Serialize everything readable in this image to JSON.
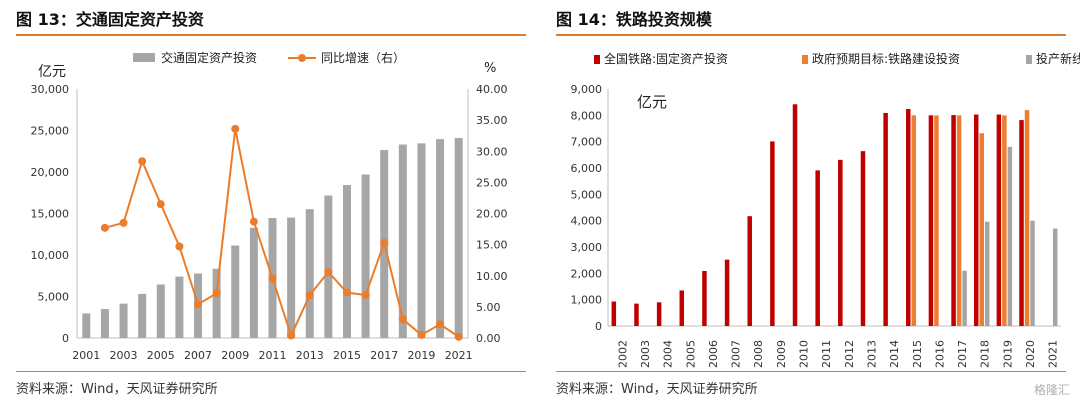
{
  "chart_data": [
    {
      "type": "bar",
      "title": "图 13：交通固定资产投资",
      "source": "资料来源：Wind，天风证券研究所",
      "y_unit_left": "亿元",
      "y_unit_right": "%",
      "ylim_left": [
        0,
        30000
      ],
      "ylim_right": [
        0,
        40
      ],
      "yticks_left": [
        "0",
        "5,000",
        "10,000",
        "15,000",
        "20,000",
        "25,000",
        "30,000"
      ],
      "yticks_right": [
        "0.00",
        "5.00",
        "10.00",
        "15.00",
        "20.00",
        "25.00",
        "30.00",
        "35.00",
        "40.00"
      ],
      "categories": [
        "2001",
        "2002",
        "2003",
        "2004",
        "2005",
        "2006",
        "2007",
        "2008",
        "2009",
        "2010",
        "2011",
        "2012",
        "2013",
        "2014",
        "2015",
        "2016",
        "2017",
        "2018",
        "2019",
        "2020",
        "2021"
      ],
      "xtick_labels": [
        "2001",
        "2003",
        "2005",
        "2007",
        "2009",
        "2011",
        "2013",
        "2015",
        "2017",
        "2019",
        "2021"
      ],
      "legend": {
        "placement": "top",
        "items": [
          "交通固定资产投资",
          "同比增速（右）"
        ]
      },
      "series": [
        {
          "name": "交通固定资产投资",
          "kind": "bar",
          "axis": "left",
          "color": "#a6a6a6",
          "values": [
            2960,
            3490,
            4140,
            5310,
            6450,
            7400,
            7770,
            8340,
            11140,
            13280,
            14460,
            14510,
            15520,
            17170,
            18430,
            19700,
            22640,
            23310,
            23450,
            23960,
            24090
          ]
        },
        {
          "name": "同比增速（右）",
          "kind": "line",
          "axis": "right",
          "color": "#ea7d2c",
          "values": [
            null,
            17.7,
            18.5,
            28.4,
            21.5,
            14.7,
            5.4,
            7.2,
            33.6,
            18.7,
            9.6,
            0.4,
            6.9,
            10.6,
            7.3,
            6.9,
            15.3,
            3.0,
            0.5,
            2.2,
            0.2
          ]
        }
      ],
      "colors": {
        "accent": "#e07b2b",
        "bar": "#a6a6a6",
        "line": "#ea7d2c"
      }
    },
    {
      "type": "bar",
      "title": "图 14：铁路投资规模",
      "source": "资料来源：Wind，天风证券研究所",
      "y_unit_left": "亿元",
      "ylim_left": [
        0,
        9000
      ],
      "yticks_left": [
        "0",
        "1,000",
        "2,000",
        "3,000",
        "4,000",
        "5,000",
        "6,000",
        "7,000",
        "8,000",
        "9,000"
      ],
      "categories": [
        "2002",
        "2003",
        "2004",
        "2005",
        "2006",
        "2007",
        "2008",
        "2009",
        "2010",
        "2011",
        "2012",
        "2013",
        "2014",
        "2015",
        "2016",
        "2017",
        "2018",
        "2019",
        "2020",
        "2021"
      ],
      "legend": {
        "placement": "top",
        "items": [
          "全国铁路:固定资产投资",
          "政府预期目标:铁路建设投资",
          "投产新线（公里）"
        ]
      },
      "series": [
        {
          "name": "全国铁路:固定资产投资",
          "color": "#c00000",
          "values": [
            930,
            850,
            900,
            1350,
            2090,
            2520,
            4170,
            7010,
            8420,
            5910,
            6310,
            6640,
            8090,
            8240,
            8000,
            8010,
            8030,
            8030,
            7820,
            null
          ]
        },
        {
          "name": "政府预期目标:铁路建设投资",
          "color": "#ed7d31",
          "values": [
            null,
            null,
            null,
            null,
            null,
            null,
            null,
            null,
            null,
            null,
            null,
            null,
            null,
            8000,
            8000,
            8000,
            7320,
            8000,
            8200,
            null
          ]
        },
        {
          "name": "投产新线（公里）",
          "color": "#a5a5a5",
          "values": [
            null,
            null,
            null,
            null,
            null,
            null,
            null,
            null,
            null,
            null,
            null,
            null,
            null,
            null,
            null,
            2100,
            3960,
            6800,
            4000,
            3700
          ]
        }
      ],
      "colors": {
        "accent": "#e07b2b"
      }
    }
  ],
  "watermark": "格隆汇"
}
